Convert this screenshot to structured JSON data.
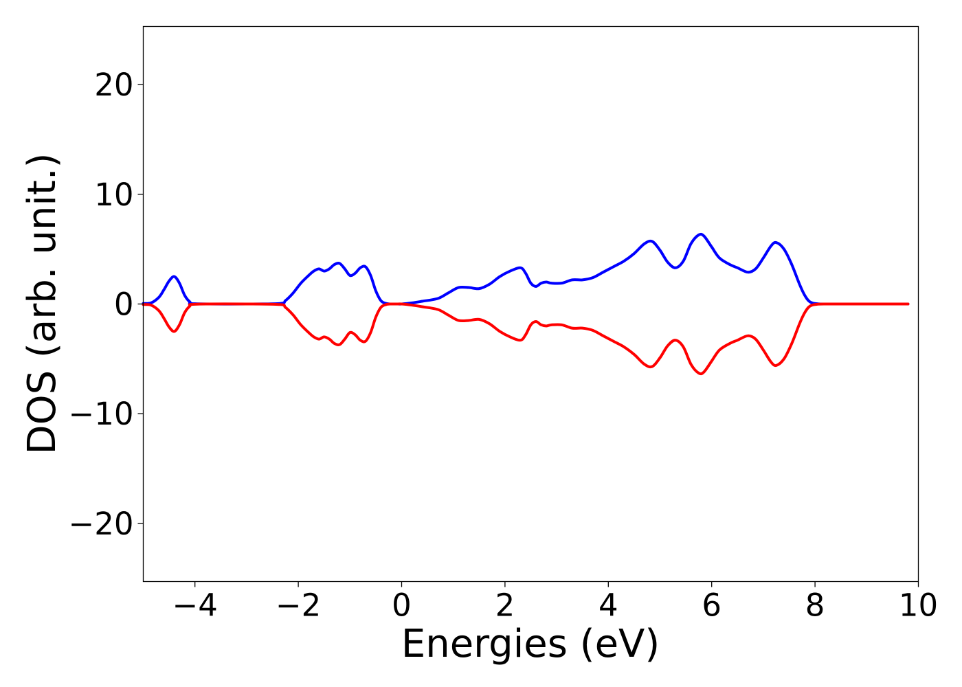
{
  "chart_data": {
    "type": "line",
    "title": "",
    "xlabel": "Energies (eV)",
    "ylabel": "DOS (arb. unit.)",
    "xlim": [
      -5,
      10
    ],
    "ylim": [
      -25.3,
      25.3
    ],
    "grid": false,
    "xticks": [
      -4,
      -2,
      0,
      2,
      4,
      6,
      8,
      10
    ],
    "xtick_labels": [
      "−4",
      "−2",
      "0",
      "2",
      "4",
      "6",
      "8",
      "10"
    ],
    "yticks": [
      20,
      10,
      0,
      -10,
      -20
    ],
    "ytick_labels": [
      "20",
      "10",
      "0",
      "−10",
      "−20"
    ],
    "series": [
      {
        "color": "#0000ff",
        "x": [
          -5.0,
          -4.85,
          -4.7,
          -4.6,
          -4.5,
          -4.4,
          -4.3,
          -4.2,
          -4.1,
          -4.0,
          -3.0,
          -2.35,
          -2.25,
          -2.1,
          -1.95,
          -1.8,
          -1.7,
          -1.6,
          -1.5,
          -1.4,
          -1.3,
          -1.2,
          -1.1,
          -1.0,
          -0.9,
          -0.8,
          -0.7,
          -0.6,
          -0.5,
          -0.4,
          -0.3,
          -0.2,
          -0.1,
          0.0,
          0.2,
          0.4,
          0.7,
          0.9,
          1.1,
          1.3,
          1.5,
          1.7,
          1.9,
          2.1,
          2.3,
          2.4,
          2.5,
          2.6,
          2.7,
          2.8,
          2.9,
          3.1,
          3.3,
          3.5,
          3.7,
          3.9,
          4.1,
          4.3,
          4.5,
          4.7,
          4.85,
          5.0,
          5.15,
          5.3,
          5.45,
          5.6,
          5.75,
          5.85,
          6.0,
          6.15,
          6.35,
          6.5,
          6.7,
          6.85,
          7.0,
          7.15,
          7.25,
          7.4,
          7.55,
          7.7,
          7.8,
          7.9,
          8.05,
          8.3,
          9.0,
          9.8
        ],
        "y": [
          0.05,
          0.1,
          0.6,
          1.3,
          2.1,
          2.5,
          1.9,
          0.8,
          0.2,
          0.02,
          0.0,
          0.05,
          0.3,
          1.0,
          1.9,
          2.6,
          3.0,
          3.2,
          3.0,
          3.2,
          3.6,
          3.7,
          3.2,
          2.6,
          2.8,
          3.3,
          3.4,
          2.6,
          1.2,
          0.3,
          0.05,
          0.0,
          0.0,
          0.0,
          0.1,
          0.25,
          0.5,
          1.0,
          1.5,
          1.5,
          1.4,
          1.8,
          2.5,
          3.0,
          3.3,
          2.8,
          1.9,
          1.6,
          1.9,
          2.0,
          1.9,
          1.9,
          2.2,
          2.2,
          2.4,
          2.9,
          3.4,
          3.9,
          4.6,
          5.5,
          5.7,
          4.9,
          3.8,
          3.3,
          3.9,
          5.5,
          6.3,
          6.2,
          5.2,
          4.2,
          3.6,
          3.3,
          2.9,
          3.2,
          4.2,
          5.3,
          5.6,
          5.0,
          3.6,
          1.8,
          0.8,
          0.2,
          0.02,
          0.0,
          0.0,
          0.0
        ]
      },
      {
        "color": "#ff0000",
        "x": [
          -5.0,
          -4.85,
          -4.7,
          -4.6,
          -4.5,
          -4.4,
          -4.3,
          -4.2,
          -4.1,
          -4.0,
          -3.0,
          -2.35,
          -2.25,
          -2.1,
          -1.95,
          -1.8,
          -1.7,
          -1.6,
          -1.5,
          -1.4,
          -1.3,
          -1.2,
          -1.1,
          -1.0,
          -0.9,
          -0.8,
          -0.7,
          -0.6,
          -0.5,
          -0.4,
          -0.3,
          -0.2,
          -0.1,
          0.0,
          0.2,
          0.4,
          0.7,
          0.9,
          1.1,
          1.3,
          1.5,
          1.7,
          1.9,
          2.1,
          2.3,
          2.4,
          2.5,
          2.6,
          2.7,
          2.8,
          2.9,
          3.1,
          3.3,
          3.5,
          3.7,
          3.9,
          4.1,
          4.3,
          4.5,
          4.7,
          4.85,
          5.0,
          5.15,
          5.3,
          5.45,
          5.6,
          5.75,
          5.85,
          6.0,
          6.15,
          6.35,
          6.5,
          6.7,
          6.85,
          7.0,
          7.15,
          7.25,
          7.4,
          7.55,
          7.7,
          7.8,
          7.9,
          8.05,
          8.3,
          9.0,
          9.8
        ],
        "y": [
          -0.05,
          -0.1,
          -0.6,
          -1.3,
          -2.1,
          -2.5,
          -1.9,
          -0.8,
          -0.2,
          -0.02,
          0.0,
          -0.05,
          -0.3,
          -1.0,
          -1.9,
          -2.6,
          -3.0,
          -3.2,
          -3.0,
          -3.2,
          -3.6,
          -3.7,
          -3.2,
          -2.6,
          -2.8,
          -3.3,
          -3.4,
          -2.6,
          -1.2,
          -0.3,
          -0.05,
          0.0,
          0.0,
          0.0,
          -0.1,
          -0.25,
          -0.5,
          -1.0,
          -1.5,
          -1.5,
          -1.4,
          -1.8,
          -2.5,
          -3.0,
          -3.3,
          -2.8,
          -1.9,
          -1.6,
          -1.9,
          -2.0,
          -1.9,
          -1.9,
          -2.2,
          -2.2,
          -2.4,
          -2.9,
          -3.4,
          -3.9,
          -4.6,
          -5.5,
          -5.7,
          -4.9,
          -3.8,
          -3.3,
          -3.9,
          -5.5,
          -6.3,
          -6.2,
          -5.2,
          -4.2,
          -3.6,
          -3.3,
          -2.9,
          -3.2,
          -4.2,
          -5.3,
          -5.6,
          -5.0,
          -3.6,
          -1.8,
          -0.8,
          -0.2,
          -0.02,
          0.0,
          0.0,
          0.0
        ]
      }
    ]
  }
}
